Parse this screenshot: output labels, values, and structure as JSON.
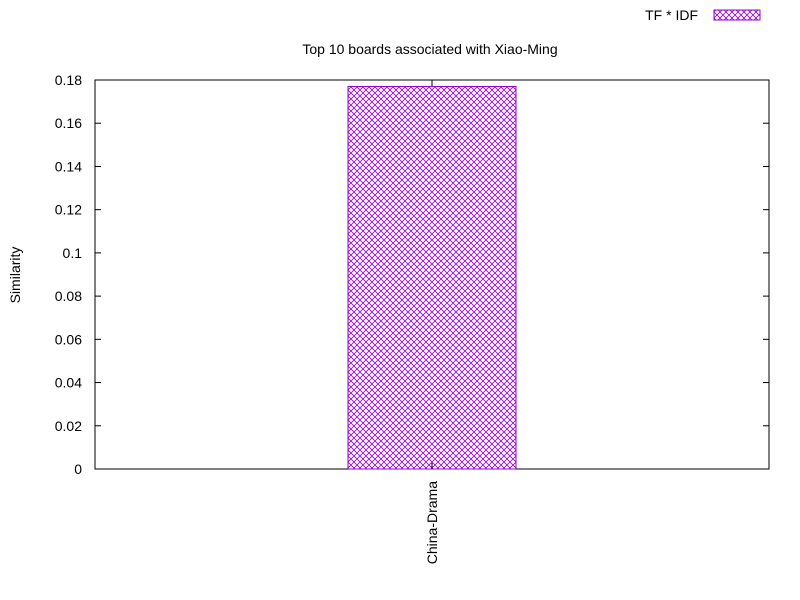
{
  "chart_data": {
    "type": "bar",
    "title": "Top 10 boards associated with Xiao-Ming",
    "xlabel": "",
    "ylabel": "Similarity",
    "categories": [
      "China-Drama"
    ],
    "series": [
      {
        "name": "TF * IDF",
        "values": [
          0.177
        ],
        "color": "#9400d3",
        "pattern": "crosshatch"
      }
    ],
    "ylim": [
      0,
      0.18
    ],
    "yticks": [
      0,
      0.02,
      0.04,
      0.06,
      0.08,
      0.1,
      0.12,
      0.14,
      0.16,
      0.18
    ],
    "ytick_labels": [
      "0",
      "0.02",
      "0.04",
      "0.06",
      "0.08",
      "0.1",
      "0.12",
      "0.14",
      "0.16",
      "0.18"
    ],
    "grid": false,
    "legend_position": "top-right",
    "x_tick_rotation": "vertical"
  }
}
